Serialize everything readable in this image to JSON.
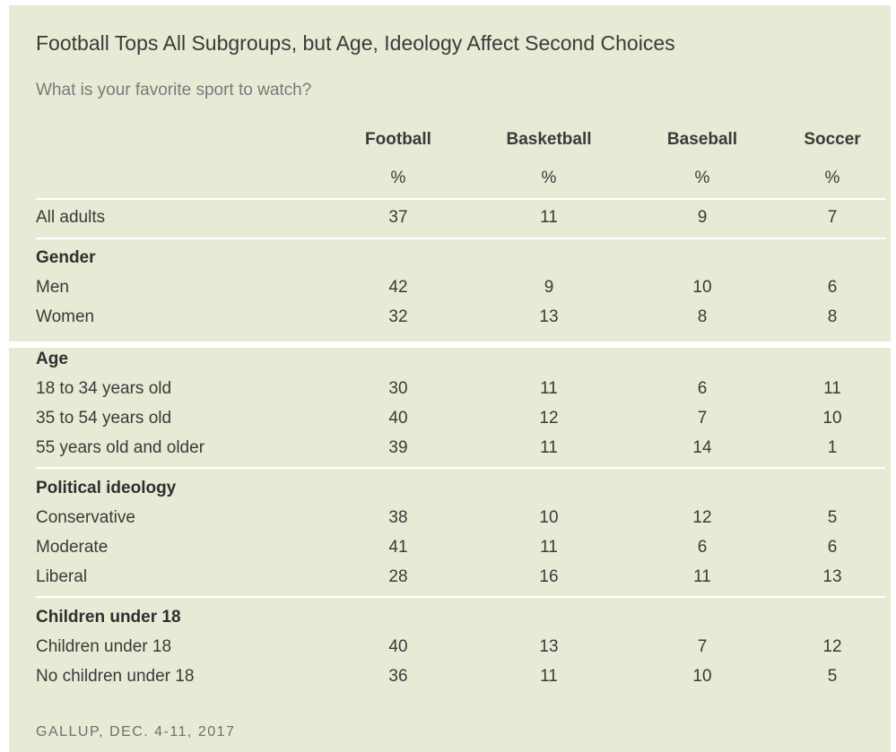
{
  "title": "Football Tops All Subgroups, but Age, Ideology Affect Second Choices",
  "subtitle": "What is your favorite sport to watch?",
  "source": "GALLUP, DEC. 4-11, 2017",
  "colors": {
    "background": "#e5ebd4",
    "divider": "#ffffff",
    "text": "#3a3a3a"
  },
  "chart_data": {
    "type": "table",
    "columns": [
      {
        "label": "Football",
        "unit": "%"
      },
      {
        "label": "Basketball",
        "unit": "%"
      },
      {
        "label": "Baseball",
        "unit": "%"
      },
      {
        "label": "Soccer",
        "unit": "%"
      }
    ],
    "overall": {
      "label": "All adults",
      "values": [
        37,
        11,
        9,
        7
      ]
    },
    "groups": [
      {
        "name": "Gender",
        "rows": [
          {
            "label": "Men",
            "values": [
              42,
              9,
              10,
              6
            ]
          },
          {
            "label": "Women",
            "values": [
              32,
              13,
              8,
              8
            ]
          }
        ]
      },
      {
        "name": "Age",
        "rows": [
          {
            "label": "18 to 34 years old",
            "values": [
              30,
              11,
              6,
              11
            ]
          },
          {
            "label": "35 to 54 years old",
            "values": [
              40,
              12,
              7,
              10
            ]
          },
          {
            "label": "55 years old and older",
            "values": [
              39,
              11,
              14,
              1
            ]
          }
        ]
      },
      {
        "name": "Political ideology",
        "rows": [
          {
            "label": "Conservative",
            "values": [
              38,
              10,
              12,
              5
            ]
          },
          {
            "label": "Moderate",
            "values": [
              41,
              11,
              6,
              6
            ]
          },
          {
            "label": "Liberal",
            "values": [
              28,
              16,
              11,
              13
            ]
          }
        ]
      },
      {
        "name": "Children under 18",
        "rows": [
          {
            "label": "Children under 18",
            "values": [
              40,
              13,
              7,
              12
            ]
          },
          {
            "label": "No children under 18",
            "values": [
              36,
              11,
              10,
              5
            ]
          }
        ]
      }
    ]
  }
}
